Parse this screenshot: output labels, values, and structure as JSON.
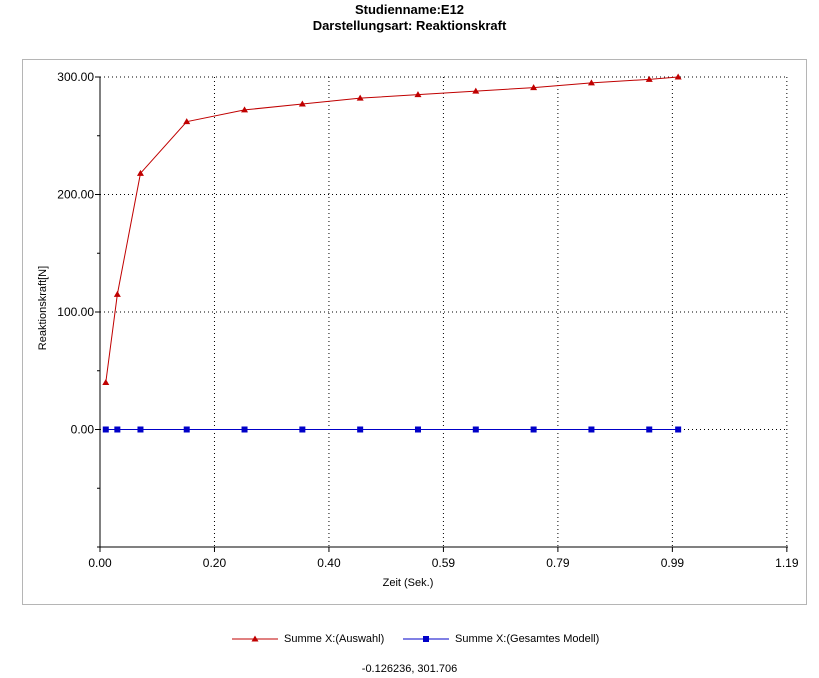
{
  "chart_data": {
    "type": "line",
    "title": "Studienname:E12",
    "subtitle": "Darstellungsart: Reaktionskraft",
    "xlabel": "Zeit (Sek.)",
    "ylabel": "Reaktionskraft[N]",
    "xlim": [
      0,
      1.19
    ],
    "ylim": [
      -100,
      300
    ],
    "x_ticks": [
      "0.00",
      "0.20",
      "0.40",
      "0.59",
      "0.79",
      "0.99",
      "1.19"
    ],
    "x_tick_values": [
      0,
      0.198,
      0.396,
      0.594,
      0.792,
      0.99,
      1.188
    ],
    "y_ticks": [
      "0.00",
      "100.00",
      "200.00",
      "300.00"
    ],
    "y_tick_values": [
      0,
      100,
      200,
      300
    ],
    "grid": true,
    "legend_position": "bottom",
    "series": [
      {
        "name": "Summe X:(Auswahl)",
        "color": "#c00000",
        "marker": "triangle",
        "x": [
          0.01,
          0.03,
          0.07,
          0.15,
          0.25,
          0.35,
          0.45,
          0.55,
          0.65,
          0.75,
          0.85,
          0.95,
          1.0
        ],
        "y": [
          40,
          115,
          218,
          262,
          272,
          277,
          282,
          285,
          288,
          291,
          295,
          298,
          300
        ]
      },
      {
        "name": "Summe X:(Gesamtes Modell)",
        "color": "#0000c8",
        "marker": "square",
        "x": [
          0.01,
          0.03,
          0.07,
          0.15,
          0.25,
          0.35,
          0.45,
          0.55,
          0.65,
          0.75,
          0.85,
          0.95,
          1.0
        ],
        "y": [
          0,
          0,
          0,
          0,
          0,
          0,
          0,
          0,
          0,
          0,
          0,
          0,
          0
        ]
      }
    ]
  },
  "cursor_readout": "-0.126236, 301.706"
}
